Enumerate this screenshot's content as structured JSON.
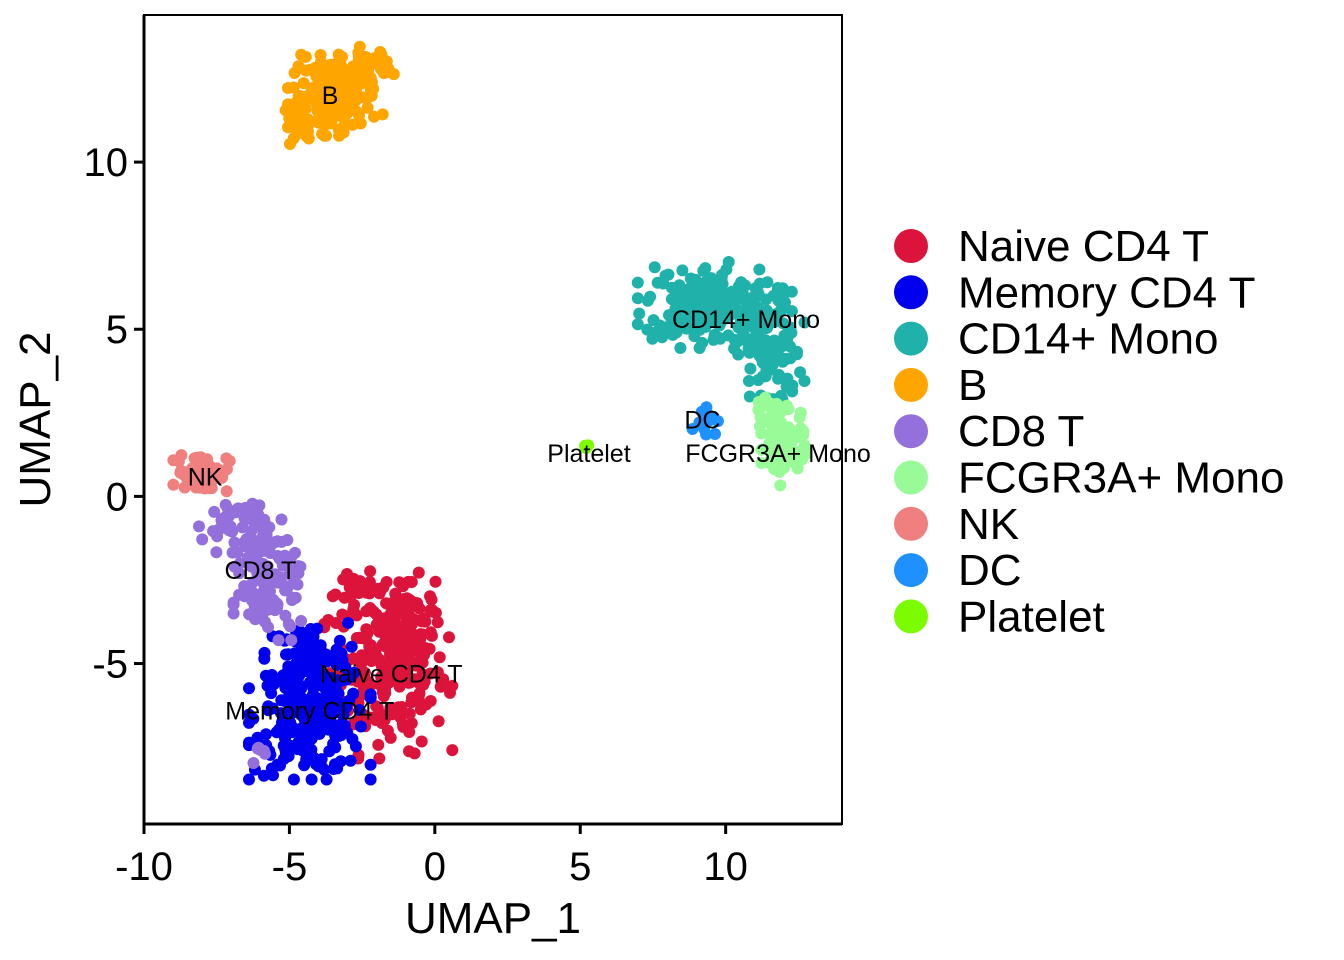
{
  "chart_data": {
    "type": "scatter",
    "xlabel": "UMAP_1",
    "ylabel": "UMAP_2",
    "xlim": [
      -10,
      14
    ],
    "ylim": [
      -9.8,
      14.4
    ],
    "xticks": [
      -10,
      -5,
      0,
      5,
      10
    ],
    "yticks": [
      -5,
      0,
      5,
      10
    ],
    "xtick_labels": [
      "-10",
      "-5",
      "0",
      "5",
      "10"
    ],
    "ytick_labels": [
      "-5",
      "0",
      "5",
      "10"
    ],
    "grid": false,
    "legend_position": "right",
    "series": [
      {
        "name": "Naive CD4 T",
        "color": "#DC143C",
        "label": "Naive CD4 T",
        "label_pos": [
          -1.5,
          -5.3
        ],
        "blobs": [
          {
            "cx": -1.6,
            "cy": -5.2,
            "sx": 1.0,
            "sy": 1.2,
            "n": 220
          },
          {
            "cx": -1.0,
            "cy": -3.6,
            "sx": 0.5,
            "sy": 0.6,
            "n": 60
          },
          {
            "cx": -2.7,
            "cy": -2.9,
            "sx": 0.5,
            "sy": 0.3,
            "n": 25
          }
        ]
      },
      {
        "name": "Memory CD4 T",
        "color": "#0000EE",
        "label": "Memory CD4 T",
        "label_pos": [
          -4.3,
          -6.4
        ],
        "blobs": [
          {
            "cx": -4.3,
            "cy": -6.6,
            "sx": 0.95,
            "sy": 0.85,
            "n": 260
          },
          {
            "cx": -4.4,
            "cy": -4.7,
            "sx": 0.7,
            "sy": 0.45,
            "n": 60
          }
        ]
      },
      {
        "name": "CD14+ Mono",
        "color": "#20B2AA",
        "label": "CD14+ Mono",
        "label_pos": [
          10.7,
          5.3
        ],
        "blobs": [
          {
            "cx": 9.4,
            "cy": 5.8,
            "sx": 1.1,
            "sy": 0.55,
            "n": 170
          },
          {
            "cx": 11.5,
            "cy": 4.3,
            "sx": 0.55,
            "sy": 0.9,
            "n": 110
          },
          {
            "cx": 8.8,
            "cy": 5.1,
            "sx": 0.6,
            "sy": 0.3,
            "n": 30
          }
        ]
      },
      {
        "name": "B",
        "color": "#FFA500",
        "label": "B",
        "label_pos": [
          -3.6,
          12.0
        ],
        "blobs": [
          {
            "cx": -3.4,
            "cy": 12.0,
            "sx": 0.75,
            "sy": 0.55,
            "n": 140
          },
          {
            "cx": -2.4,
            "cy": 12.9,
            "sx": 0.45,
            "sy": 0.25,
            "n": 40
          },
          {
            "cx": -4.6,
            "cy": 11.2,
            "sx": 0.3,
            "sy": 0.3,
            "n": 25
          }
        ]
      },
      {
        "name": "CD8 T",
        "color": "#9370DB",
        "label": "CD8 T",
        "label_pos": [
          -6.0,
          -2.2
        ],
        "blobs": [
          {
            "cx": -6.9,
            "cy": -0.8,
            "sx": 0.55,
            "sy": 0.4,
            "n": 45
          },
          {
            "cx": -5.9,
            "cy": -1.9,
            "sx": 0.55,
            "sy": 0.55,
            "n": 55
          },
          {
            "cx": -5.6,
            "cy": -3.2,
            "sx": 0.6,
            "sy": 0.5,
            "n": 55
          },
          {
            "cx": -6.0,
            "cy": -7.7,
            "sx": 0.2,
            "sy": 0.2,
            "n": 6
          }
        ]
      },
      {
        "name": "FCGR3A+ Mono",
        "color": "#98FB98",
        "label": "FCGR3A+ Mono",
        "label_pos": [
          11.8,
          1.3
        ],
        "blobs": [
          {
            "cx": 12.0,
            "cy": 1.5,
            "sx": 0.35,
            "sy": 0.55,
            "n": 80
          },
          {
            "cx": 11.5,
            "cy": 2.4,
            "sx": 0.3,
            "sy": 0.25,
            "n": 20
          }
        ]
      },
      {
        "name": "NK",
        "color": "#F08080",
        "label": "NK",
        "label_pos": [
          -7.9,
          0.6
        ],
        "blobs": [
          {
            "cx": -8.0,
            "cy": 0.7,
            "sx": 0.45,
            "sy": 0.3,
            "n": 70
          }
        ]
      },
      {
        "name": "DC",
        "color": "#1E90FF",
        "label": "DC",
        "label_pos": [
          9.2,
          2.3
        ],
        "blobs": [
          {
            "cx": 9.3,
            "cy": 2.4,
            "sx": 0.2,
            "sy": 0.25,
            "n": 14
          }
        ]
      },
      {
        "name": "Platelet",
        "color": "#7CFC00",
        "label": "Platelet",
        "label_pos": [
          5.3,
          1.3
        ],
        "blobs": [
          {
            "cx": 5.2,
            "cy": 1.45,
            "sx": 0.08,
            "sy": 0.06,
            "n": 4
          }
        ]
      }
    ]
  }
}
